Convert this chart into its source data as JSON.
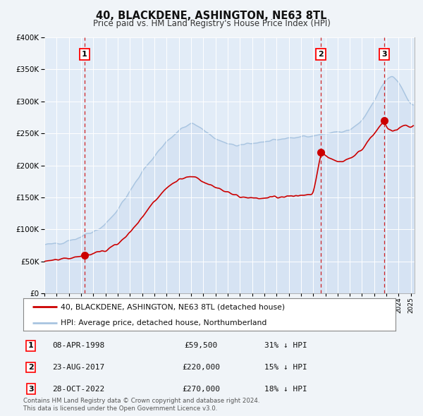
{
  "title": "40, BLACKDENE, ASHINGTON, NE63 8TL",
  "subtitle": "Price paid vs. HM Land Registry's House Price Index (HPI)",
  "hpi_label": "HPI: Average price, detached house, Northumberland",
  "property_label": "40, BLACKDENE, ASHINGTON, NE63 8TL (detached house)",
  "hpi_color": "#a8c4e0",
  "hpi_fill_color": "#c8daf0",
  "property_color": "#cc0000",
  "background_color": "#f0f4f8",
  "plot_bg_color": "#e2ecf7",
  "grid_color": "#ffffff",
  "ylim": [
    0,
    400000
  ],
  "yticks": [
    0,
    50000,
    100000,
    150000,
    200000,
    250000,
    300000,
    350000,
    400000
  ],
  "xlim_start": 1995,
  "xlim_end": 2025.3,
  "sales": [
    {
      "num": 1,
      "date": "08-APR-1998",
      "price": 59500,
      "hpi_pct": "31%",
      "direction": "↓",
      "x_year": 1998.27
    },
    {
      "num": 2,
      "date": "23-AUG-2017",
      "price": 220000,
      "hpi_pct": "15%",
      "direction": "↓",
      "x_year": 2017.64
    },
    {
      "num": 3,
      "date": "28-OCT-2022",
      "price": 270000,
      "hpi_pct": "18%",
      "direction": "↓",
      "x_year": 2022.82
    }
  ],
  "footer_line1": "Contains HM Land Registry data © Crown copyright and database right 2024.",
  "footer_line2": "This data is licensed under the Open Government Licence v3.0.",
  "hpi_keypoints_x": [
    1995,
    1996,
    1997,
    1998,
    1999,
    2000,
    2001,
    2002,
    2003,
    2004,
    2005,
    2006,
    2007,
    2007.5,
    2008,
    2009,
    2010,
    2011,
    2012,
    2013,
    2014,
    2015,
    2016,
    2017,
    2017.5,
    2018,
    2019,
    2020,
    2021,
    2022,
    2022.5,
    2023,
    2023.5,
    2024,
    2024.5,
    2025
  ],
  "hpi_keypoints_y": [
    75000,
    78000,
    82000,
    88000,
    96000,
    108000,
    130000,
    160000,
    190000,
    215000,
    238000,
    255000,
    265000,
    263000,
    255000,
    242000,
    232000,
    232000,
    235000,
    237000,
    240000,
    243000,
    244000,
    246000,
    248000,
    250000,
    252000,
    255000,
    270000,
    300000,
    320000,
    335000,
    340000,
    330000,
    310000,
    295000
  ],
  "prop_keypoints_x": [
    1995,
    1996,
    1997,
    1998.27,
    1999,
    2000,
    2001,
    2002,
    2003,
    2004,
    2005,
    2006,
    2007,
    2007.5,
    2008,
    2009,
    2010,
    2011,
    2012,
    2013,
    2014,
    2015,
    2016,
    2017,
    2017.64,
    2018,
    2018.5,
    2019,
    2020,
    2021,
    2022,
    2022.82,
    2023,
    2023.5,
    2024,
    2024.5,
    2025
  ],
  "prop_keypoints_y": [
    50000,
    52000,
    55000,
    59500,
    62000,
    67000,
    78000,
    95000,
    118000,
    145000,
    165000,
    178000,
    182000,
    180000,
    175000,
    167000,
    158000,
    152000,
    148000,
    148000,
    150000,
    152000,
    153000,
    155000,
    220000,
    215000,
    210000,
    205000,
    210000,
    225000,
    250000,
    270000,
    258000,
    252000,
    258000,
    262000,
    260000
  ]
}
